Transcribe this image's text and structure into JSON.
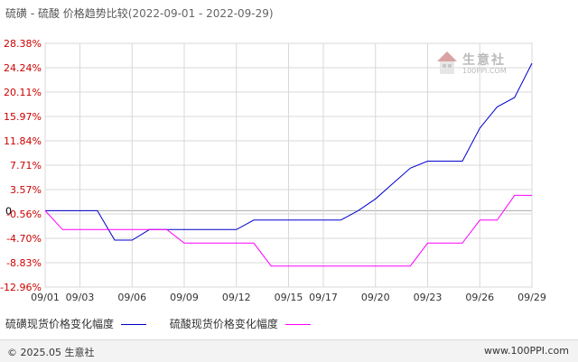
{
  "header": {
    "title_main": "硫磺 - 硫酸 价格趋势比较",
    "title_range": "(2022-09-01 - 2022-09-29)"
  },
  "chart_data": {
    "type": "line",
    "x_tick_labels": [
      "09/01",
      "09/03",
      "09/06",
      "09/09",
      "09/12",
      "09/15",
      "09/17",
      "09/20",
      "09/23",
      "09/26",
      "09/29"
    ],
    "y_tick_labels": [
      "28.38%",
      "24.24%",
      "20.11%",
      "15.97%",
      "11.84%",
      "7.71%",
      "3.57%",
      "-0.56%",
      "-4.70%",
      "-8.83%",
      "-12.96%"
    ],
    "y_tick_values": [
      28.38,
      24.24,
      20.11,
      15.97,
      11.84,
      7.71,
      3.57,
      -0.56,
      -4.7,
      -8.83,
      -12.96
    ],
    "ylim": [
      -12.96,
      28.38
    ],
    "zero_label": "0",
    "grid": true,
    "x_days": [
      1,
      2,
      3,
      4,
      5,
      6,
      7,
      8,
      9,
      10,
      11,
      12,
      13,
      14,
      15,
      16,
      17,
      18,
      19,
      20,
      21,
      22,
      23,
      24,
      25,
      26,
      27,
      28,
      29
    ],
    "series": [
      {
        "name": "硫磺现货价格变化幅度",
        "color": "#0000cc",
        "values": [
          0,
          0,
          0,
          0,
          -5,
          -5,
          -3.2,
          -3.2,
          -3.2,
          -3.2,
          -3.2,
          -3.2,
          -1.6,
          -1.6,
          -1.6,
          -1.6,
          -1.6,
          -1.6,
          0,
          2,
          4.6,
          7.2,
          8.4,
          8.4,
          8.4,
          14,
          17.6,
          19.2,
          25
        ]
      },
      {
        "name": "硫酸现货价格变化幅度",
        "color": "#ff00ff",
        "values": [
          0,
          -3.2,
          -3.2,
          -3.2,
          -3.2,
          -3.2,
          -3.2,
          -3.2,
          -5.5,
          -5.5,
          -5.5,
          -5.5,
          -5.5,
          -9.4,
          -9.4,
          -9.4,
          -9.4,
          -9.4,
          -9.4,
          -9.4,
          -9.4,
          -9.4,
          -5.5,
          -5.5,
          -5.5,
          -1.6,
          -1.6,
          2.6,
          2.6
        ]
      }
    ]
  },
  "legend": {
    "item1": "硫磺现货价格变化幅度",
    "item2": "硫酸现货价格变化幅度"
  },
  "watermark": {
    "text": "生意社",
    "url": "100PPI.COM"
  },
  "footer": {
    "copyright": "© 2025.05 生意社",
    "url": "www.100PPI.com"
  }
}
